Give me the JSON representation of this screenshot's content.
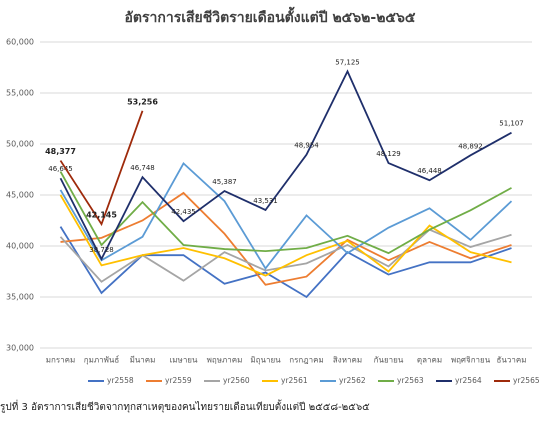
{
  "chart_data": {
    "type": "line",
    "title": "อัตราการเสียชีวิตรายเดือนตั้งแต่ปี ๒๕๖๒-๒๕๖๕",
    "caption": "รูปที่ 3 อัตราการเสียชีวิตจากทุกสาเหตุของคนไทยรายเดือนเทียบตั้งแต่ปี ๒๕๕๘-๒๕๖๕",
    "categories": [
      "มกราคม",
      "กุมภาพันธ์",
      "มีนาคม",
      "เมษายน",
      "พฤษภาคม",
      "มิถุนายน",
      "กรกฎาคม",
      "สิงหาคม",
      "กันยายน",
      "ตุลาคม",
      "พฤศจิกายน",
      "ธันวาคม"
    ],
    "ylim": [
      30000,
      60000
    ],
    "yticks": [
      {
        "value": 30000,
        "label": "30,000"
      },
      {
        "value": 35000,
        "label": "35,000"
      },
      {
        "value": 40000,
        "label": "40,000"
      },
      {
        "value": 45000,
        "label": "45,000"
      },
      {
        "value": 50000,
        "label": "50,000"
      },
      {
        "value": 55000,
        "label": "55,000"
      },
      {
        "value": 60000,
        "label": "60,000"
      }
    ],
    "grid": true,
    "legend": "bottom",
    "series": [
      {
        "name": "yr2558",
        "color": "#4472c4",
        "values": [
          41900,
          35400,
          39100,
          39100,
          36300,
          37400,
          35000,
          39400,
          37200,
          38400,
          38400,
          39800
        ]
      },
      {
        "name": "yr2559",
        "color": "#ed7d31",
        "values": [
          40400,
          40800,
          42500,
          45200,
          41200,
          36200,
          37000,
          40600,
          38600,
          40400,
          38800,
          40100
        ]
      },
      {
        "name": "yr2560",
        "color": "#a5a5a5",
        "values": [
          40900,
          36500,
          39100,
          36600,
          39400,
          37600,
          38300,
          40100,
          38000,
          41600,
          39900,
          41100
        ]
      },
      {
        "name": "yr2561",
        "color": "#ffc000",
        "values": [
          45000,
          38100,
          39100,
          39800,
          38800,
          37100,
          39100,
          40500,
          37500,
          42000,
          39400,
          38400
        ]
      },
      {
        "name": "yr2562",
        "color": "#5b9bd5",
        "values": [
          45500,
          38600,
          40900,
          48100,
          44400,
          37800,
          43000,
          39300,
          41800,
          43700,
          40600,
          44400
        ]
      },
      {
        "name": "yr2563",
        "color": "#70ad47",
        "values": [
          47300,
          40100,
          44300,
          40100,
          39700,
          39500,
          39800,
          41000,
          39300,
          41600,
          43500,
          45700
        ]
      },
      {
        "name": "yr2564",
        "color": "#1f2f6b",
        "values": [
          46645,
          38728,
          46748,
          42435,
          45387,
          43531,
          48954,
          57125,
          48129,
          46448,
          48892,
          51107
        ],
        "value_labels": [
          "46,645",
          "38,728",
          "46,748",
          "42,435",
          "45,387",
          "43,531",
          "48,954",
          "57,125",
          "48,129",
          "46,448",
          "48,892",
          "51,107"
        ]
      },
      {
        "name": "yr2565",
        "color": "#9e2a0b",
        "values": [
          48377,
          42145,
          53256,
          null,
          null,
          null,
          null,
          null,
          null,
          null,
          null,
          null
        ],
        "value_labels": [
          "48,377",
          "42,145",
          "53,256",
          null,
          null,
          null,
          null,
          null,
          null,
          null,
          null,
          null
        ]
      }
    ]
  }
}
